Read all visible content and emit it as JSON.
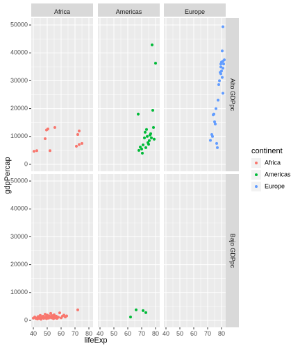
{
  "chart_data": {
    "type": "scatter",
    "xlabel": "lifeExp",
    "ylabel": "gdpPercap",
    "xlim": [
      38.5,
      83
    ],
    "ylim": [
      -2500,
      52500
    ],
    "x_ticks": [
      40,
      50,
      60,
      70,
      80
    ],
    "y_ticks": [
      0,
      10000,
      20000,
      30000,
      40000,
      50000
    ],
    "y_tick_labels": [
      "0",
      "10000",
      "20000",
      "30000",
      "40000",
      "50000"
    ],
    "grid": true,
    "legend": {
      "title": "continent",
      "position": "right",
      "entries": [
        {
          "label": "Africa",
          "color": "#F8766D"
        },
        {
          "label": "Americas",
          "color": "#00BA38"
        },
        {
          "label": "Europe",
          "color": "#619CFF"
        }
      ]
    },
    "col_facets": [
      "Africa",
      "Americas",
      "Europe"
    ],
    "row_facets": [
      "Alto GDPpc",
      "Bajo GDPpc"
    ],
    "panels": [
      {
        "row": 0,
        "col": 0,
        "series": "Africa",
        "points": [
          [
            40.5,
            4700
          ],
          [
            42.5,
            4900
          ],
          [
            48.5,
            9200
          ],
          [
            49.5,
            12300
          ],
          [
            50.5,
            12700
          ],
          [
            52,
            4900
          ],
          [
            55.5,
            13200
          ],
          [
            71,
            6500
          ],
          [
            72,
            10700
          ],
          [
            73,
            12000
          ],
          [
            73,
            7100
          ],
          [
            75,
            7500
          ]
        ]
      },
      {
        "row": 0,
        "col": 1,
        "series": "Americas",
        "points": [
          [
            68,
            5000
          ],
          [
            69,
            6200
          ],
          [
            70,
            5500
          ],
          [
            70.5,
            4000
          ],
          [
            71,
            7000
          ],
          [
            72,
            9500
          ],
          [
            72.5,
            11500
          ],
          [
            73,
            6000
          ],
          [
            73.5,
            12500
          ],
          [
            74,
            10000
          ],
          [
            74.5,
            7800
          ],
          [
            75,
            7200
          ],
          [
            75.5,
            8500
          ],
          [
            76,
            10500
          ],
          [
            76.5,
            11000
          ],
          [
            77,
            9500
          ],
          [
            78,
            19400
          ],
          [
            78.5,
            13200
          ],
          [
            79,
            9000
          ],
          [
            80,
            36300
          ],
          [
            77.5,
            42900
          ],
          [
            67.5,
            18000
          ]
        ]
      },
      {
        "row": 0,
        "col": 2,
        "series": "Europe",
        "points": [
          [
            72,
            8600
          ],
          [
            73,
            10700
          ],
          [
            73.5,
            10000
          ],
          [
            74,
            17800
          ],
          [
            74.5,
            18000
          ],
          [
            75,
            15300
          ],
          [
            75.5,
            14500
          ],
          [
            76,
            20000
          ],
          [
            76.5,
            7500
          ],
          [
            77,
            6000
          ],
          [
            77.5,
            23000
          ],
          [
            78,
            28600
          ],
          [
            78.5,
            30000
          ],
          [
            79,
            33000
          ],
          [
            79.5,
            32500
          ],
          [
            79.5,
            35000
          ],
          [
            79.5,
            36000
          ],
          [
            80,
            33500
          ],
          [
            80,
            36700
          ],
          [
            80.5,
            40700
          ],
          [
            80.5,
            31200
          ],
          [
            81,
            37000
          ],
          [
            81,
            25500
          ],
          [
            81,
            34500
          ],
          [
            81.5,
            36000
          ],
          [
            82,
            37500
          ],
          [
            81,
            49400
          ]
        ]
      },
      {
        "row": 1,
        "col": 0,
        "series": "Africa",
        "points": [
          [
            40,
            800
          ],
          [
            41,
            1200
          ],
          [
            42,
            600
          ],
          [
            42.5,
            900
          ],
          [
            43,
            500
          ],
          [
            43.5,
            1400
          ],
          [
            44,
            1000
          ],
          [
            44.5,
            700
          ],
          [
            45,
            1800
          ],
          [
            45.5,
            400
          ],
          [
            46,
            1100
          ],
          [
            46.5,
            900
          ],
          [
            47,
            1500
          ],
          [
            47.5,
            700
          ],
          [
            48,
            1000
          ],
          [
            48.5,
            2200
          ],
          [
            49,
            1200
          ],
          [
            49.5,
            600
          ],
          [
            50,
            1900
          ],
          [
            50.5,
            1400
          ],
          [
            51,
            800
          ],
          [
            51.5,
            1600
          ],
          [
            52,
            1100
          ],
          [
            52.5,
            2500
          ],
          [
            53,
            900
          ],
          [
            53.5,
            1700
          ],
          [
            54,
            1200
          ],
          [
            54.5,
            600
          ],
          [
            55,
            2000
          ],
          [
            55.5,
            1300
          ],
          [
            56,
            900
          ],
          [
            56.5,
            1500
          ],
          [
            57,
            700
          ],
          [
            58,
            1100
          ],
          [
            59,
            2700
          ],
          [
            60,
            900
          ],
          [
            61,
            1500
          ],
          [
            62,
            1900
          ],
          [
            63,
            1200
          ],
          [
            64,
            1600
          ],
          [
            72,
            3800
          ]
        ]
      },
      {
        "row": 1,
        "col": 1,
        "series": "Americas",
        "points": [
          [
            62,
            1200
          ],
          [
            66,
            3800
          ],
          [
            71,
            3500
          ],
          [
            73,
            2800
          ]
        ]
      },
      {
        "row": 1,
        "col": 2,
        "series": "Europe",
        "points": []
      }
    ]
  }
}
